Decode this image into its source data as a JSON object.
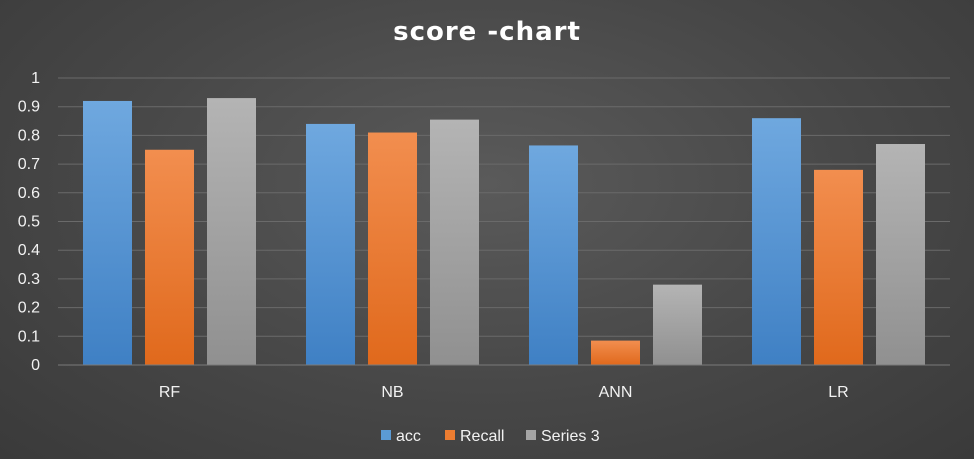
{
  "chart_data": {
    "type": "bar",
    "title": "score -chart",
    "categories": [
      "RF",
      "NB",
      "ANN",
      "LR"
    ],
    "series": [
      {
        "name": "acc",
        "values": [
          0.92,
          0.84,
          0.765,
          0.86
        ]
      },
      {
        "name": "Recall",
        "values": [
          0.75,
          0.81,
          0.085,
          0.68
        ]
      },
      {
        "name": "Series 3",
        "values": [
          0.93,
          0.855,
          0.28,
          0.77
        ]
      }
    ],
    "xlabel": "",
    "ylabel": "",
    "ylim": [
      0,
      1
    ],
    "yticks": [
      "0",
      "0.1",
      "0.2",
      "0.3",
      "0.4",
      "0.5",
      "0.6",
      "0.7",
      "0.8",
      "0.9",
      "1"
    ],
    "grid": true,
    "legend_position": "bottom",
    "colors": {
      "acc": "#5b9bd5",
      "Recall": "#ed7d31",
      "Series 3": "#a5a5a5",
      "gridline": "#6a6a6a",
      "text": "#f2f2f2",
      "title": "#ffffff"
    }
  }
}
